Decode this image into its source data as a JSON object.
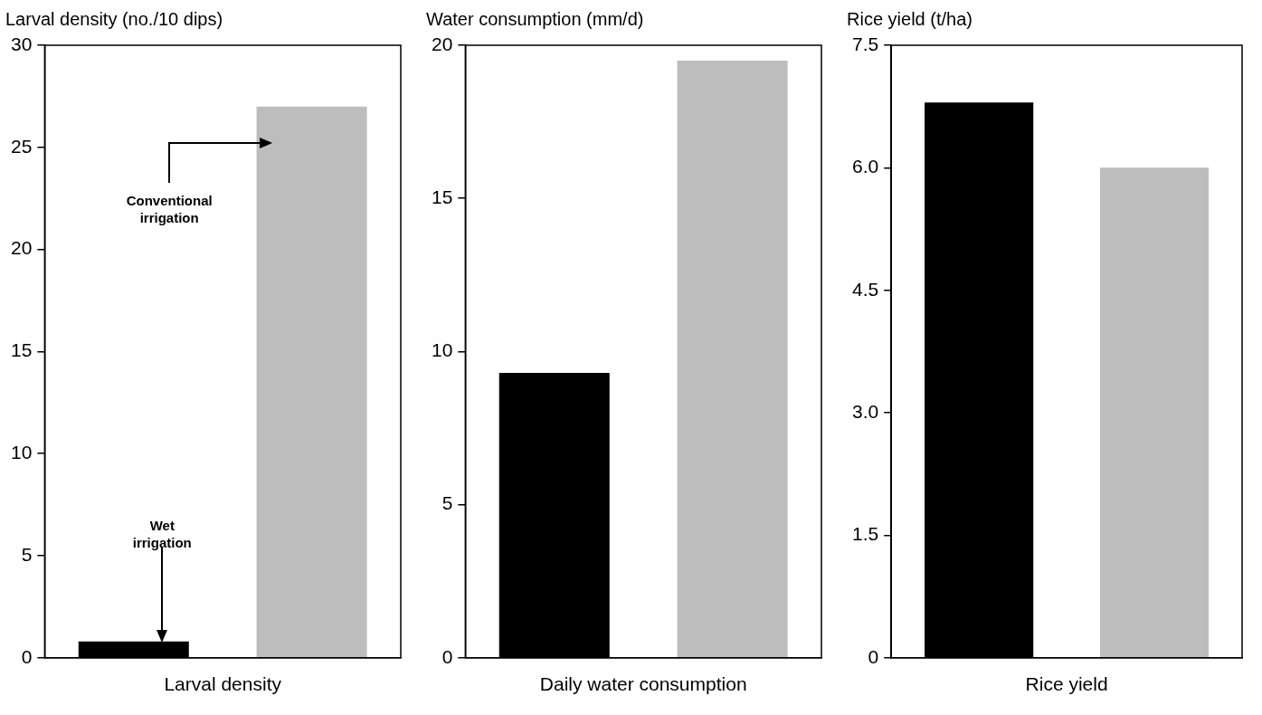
{
  "chart_data": [
    {
      "type": "bar",
      "ylabel": "Larval density (no./10 dips)",
      "xlabel": "Larval density",
      "categories": [
        null,
        null
      ],
      "series": [
        {
          "color": "#000000",
          "values": [
            0.8,
            null
          ]
        },
        {
          "color": "#bdbdbd",
          "values": [
            null,
            27
          ]
        }
      ],
      "ylim": [
        0,
        30
      ],
      "yticks": [
        0,
        5,
        10,
        15,
        20,
        25,
        30
      ],
      "grid": false,
      "legend": false,
      "annotations": [
        "Conventional irrigation",
        "Wet irrigation"
      ]
    },
    {
      "type": "bar",
      "ylabel": "Water consumption (mm/d)",
      "xlabel": "Daily water consumption",
      "categories": [
        null,
        null
      ],
      "series": [
        {
          "color": "#000000",
          "values": [
            9.3,
            null
          ]
        },
        {
          "color": "#bdbdbd",
          "values": [
            null,
            19.5
          ]
        }
      ],
      "ylim": [
        0,
        20
      ],
      "yticks": [
        0,
        5,
        10,
        15,
        20
      ],
      "grid": false,
      "legend": false
    },
    {
      "type": "bar",
      "ylabel": "Rice yield (t/ha)",
      "xlabel": "Rice yield",
      "categories": [
        null,
        null
      ],
      "series": [
        {
          "color": "#000000",
          "values": [
            6.8,
            null
          ]
        },
        {
          "color": "#bdbdbd",
          "values": [
            null,
            6.0
          ]
        }
      ],
      "ylim": [
        0,
        7.5
      ],
      "yticks": [
        0,
        {
          "value": 1.5,
          "label": "1.5"
        },
        {
          "value": 3,
          "label": "3.0"
        },
        {
          "value": 4.5,
          "label": "4.5"
        },
        {
          "value": 6,
          "label": "6.0"
        },
        7.5
      ],
      "grid": false,
      "legend": false
    }
  ]
}
